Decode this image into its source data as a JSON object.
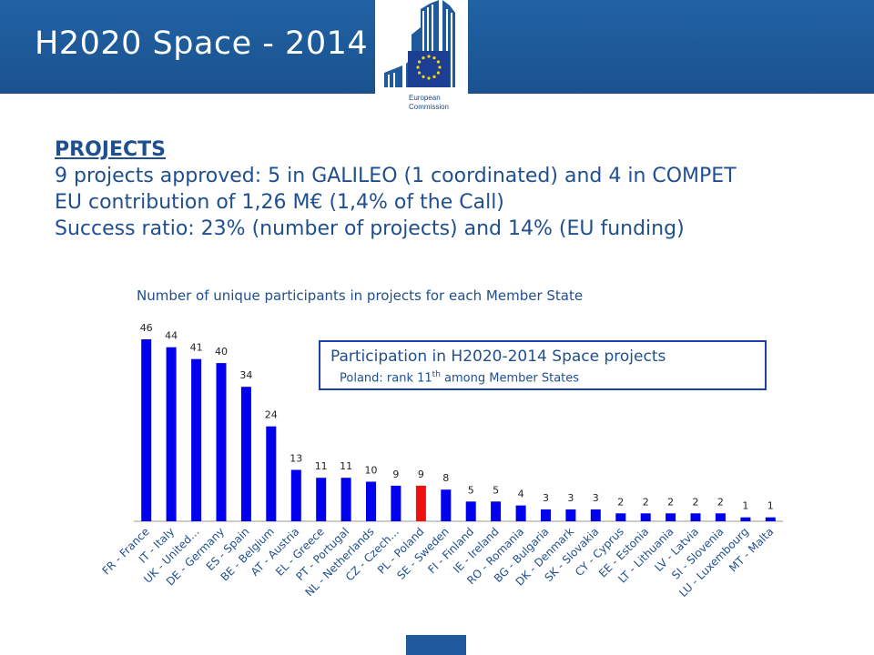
{
  "header": {
    "title": "H2020 Space - 2014",
    "logo_text": "European Commission"
  },
  "intro": {
    "heading": "PROJECTS",
    "line1": "9 projects approved: 5 in GALILEO (1 coordinated) and 4 in COMPET",
    "line2": "EU contribution of 1,26 M€ (1,4% of the Call)",
    "line3": "Success ratio: 23% (number of projects) and 14% (EU funding)"
  },
  "legend_box": {
    "title": "Participation in H2020-2014 Space projects",
    "subtitle_before": "Poland: rank 11",
    "subtitle_sup": "th",
    "subtitle_after": " among Member States"
  },
  "colors": {
    "header": "#1f5a9c",
    "bar": "#0000ee",
    "highlight": "#ee1111",
    "text": "#1f4f8f"
  },
  "chart_data": {
    "type": "bar",
    "title": "Number of unique participants in projects for each Member State",
    "xlabel": "",
    "ylabel": "",
    "ylim": [
      0,
      46
    ],
    "grid": false,
    "categories": [
      "FR - France",
      "IT - Italy",
      "UK - United…",
      "DE - Germany",
      "ES - Spain",
      "BE - Belgium",
      "AT - Austria",
      "EL - Greece",
      "PT - Portugal",
      "NL - Netherlands",
      "CZ - Czech…",
      "PL - Poland",
      "SE - Sweden",
      "FI - Finland",
      "IE - Ireland",
      "RO - Romania",
      "BG - Bulgaria",
      "DK - Denmark",
      "SK - Slovakia",
      "CY - Cyprus",
      "EE - Estonia",
      "LT - Lithuania",
      "LV - Latvia",
      "SI - Slovenia",
      "LU - Luxembourg",
      "MT - Malta"
    ],
    "values": [
      46,
      44,
      41,
      40,
      34,
      24,
      13,
      11,
      11,
      10,
      9,
      9,
      8,
      5,
      5,
      4,
      3,
      3,
      3,
      2,
      2,
      2,
      2,
      2,
      1,
      1
    ],
    "highlight_category": "PL - Poland"
  }
}
